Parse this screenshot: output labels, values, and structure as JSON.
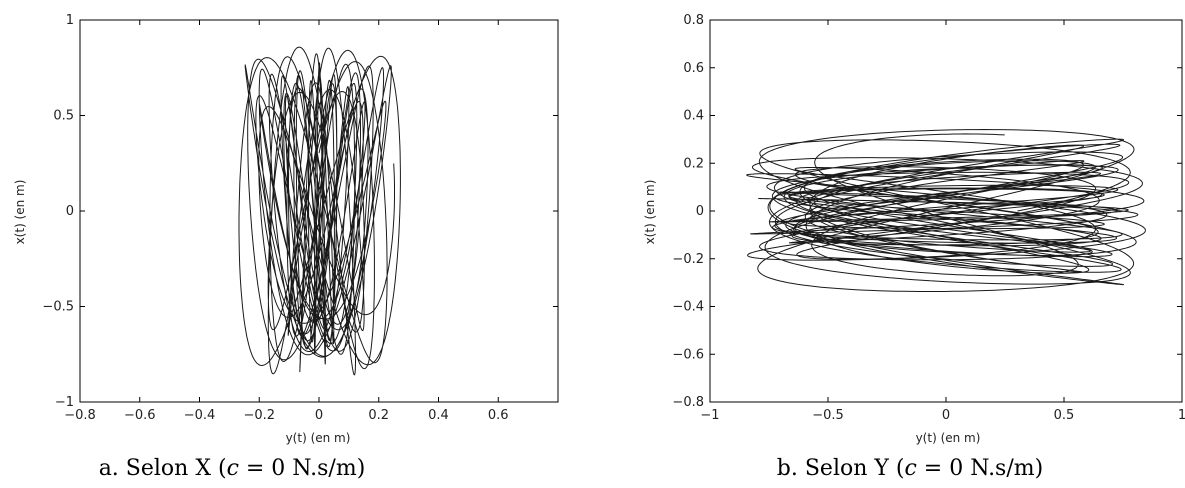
{
  "chart_data": [
    {
      "type": "line",
      "caption": "a. Selon X (c = 0 N.s/m)",
      "xlabel": "y(t) (en m)",
      "ylabel": "x(t) (en m)",
      "xlim": [
        -0.8,
        0.8
      ],
      "ylim": [
        -1,
        1
      ],
      "xticks": [
        -0.8,
        -0.6,
        -0.4,
        -0.2,
        0,
        0.2,
        0.4,
        0.6
      ],
      "xtick_labels": [
        "−0.8",
        "−0.6",
        "−0.4",
        "−0.2",
        "0",
        "0.2",
        "0.4",
        "0.6"
      ],
      "yticks": [
        -1,
        -0.5,
        0,
        0.5,
        1
      ],
      "ytick_labels": [
        "−1",
        "−0.5",
        "0",
        "0.5",
        "1"
      ],
      "trajectory": {
        "x_amplitude": 0.33,
        "y_amplitude": 0.95,
        "x_extent_typical": 0.2,
        "y_extent_typical": 0.8
      },
      "grid": false,
      "line_color": "#1a1a1a"
    },
    {
      "type": "line",
      "caption": "b. Selon Y (c = 0 N.s/m)",
      "xlabel": "y(t) (en m)",
      "ylabel": "x(t) (en m)",
      "xlim": [
        -1,
        1
      ],
      "ylim": [
        -0.8,
        0.8
      ],
      "xticks": [
        -1,
        -0.5,
        0,
        0.5,
        1
      ],
      "xtick_labels": [
        "−1",
        "−0.5",
        "0",
        "0.5",
        "1"
      ],
      "yticks": [
        -0.8,
        -0.6,
        -0.4,
        -0.2,
        0,
        0.2,
        0.4,
        0.6,
        0.8
      ],
      "ytick_labels": [
        "−0.8",
        "−0.6",
        "−0.4",
        "−0.2",
        "0",
        "0.2",
        "0.4",
        "0.6",
        "0.8"
      ],
      "trajectory": {
        "x_amplitude": 0.92,
        "y_amplitude": 0.4,
        "x_extent_typical": 0.8,
        "y_extent_typical": 0.27
      },
      "grid": false,
      "line_color": "#1a1a1a"
    }
  ]
}
